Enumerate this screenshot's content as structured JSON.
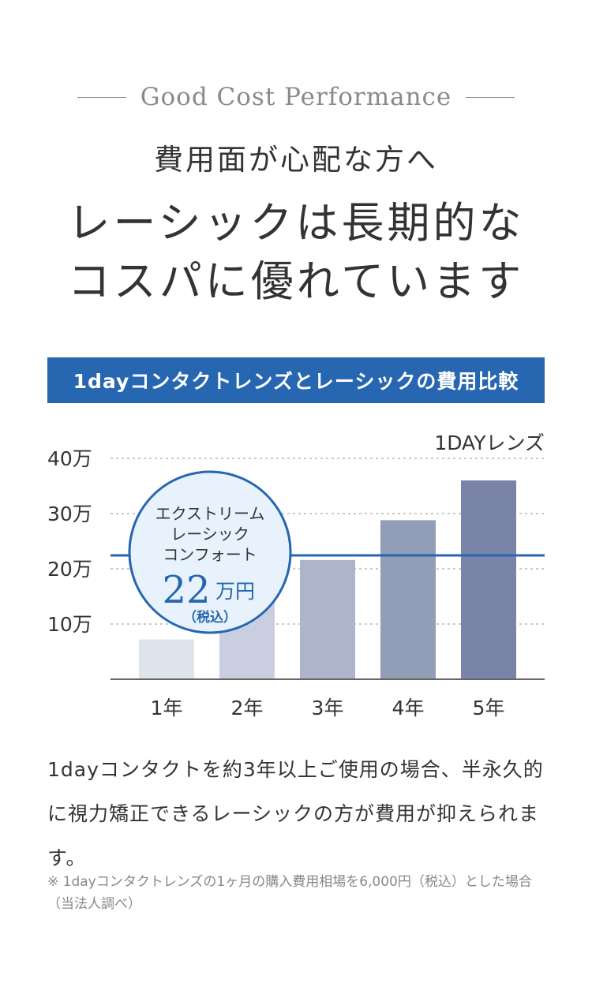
{
  "header": {
    "eyebrow": "Good Cost Performance",
    "subtitle": "費用面が心配な方へ",
    "headline_lines": [
      "レーシックは長期的な",
      "コスパに優れています"
    ]
  },
  "chart_banner": "1dayコンタクトレンズとレーシックの費用比較",
  "chart_data": {
    "type": "bar",
    "categories": [
      "1年",
      "2年",
      "3年",
      "4年",
      "5年"
    ],
    "series": [
      {
        "name": "1DAYレンズ",
        "values": [
          7.2,
          14.4,
          21.6,
          28.8,
          36
        ]
      }
    ],
    "ylim": [
      0,
      40
    ],
    "yticks": [
      10,
      20,
      30,
      40
    ],
    "ytick_labels": [
      "10万",
      "20万",
      "30万",
      "40万"
    ],
    "grid": true,
    "bar_colors": [
      "#dfe3ec",
      "#c9cfe0",
      "#adb5cc",
      "#929db8",
      "#7a84a8"
    ],
    "reference_line": {
      "value": 22,
      "color": "#2766b0",
      "label_lines": [
        "エクストリーム",
        "レーシック",
        "コンフォート"
      ],
      "price_number": "22",
      "price_unit": "万円",
      "tax_note": "（税込）"
    }
  },
  "description": "1dayコンタクトを約3年以上ご使用の場合、半永久的に視力矯正できるレーシックの方が費用が抑えられます。",
  "note": "※ 1dayコンタクトレンズの1ヶ月の購入費用相場を6,000円（税込）とした場合（当法人調べ）"
}
